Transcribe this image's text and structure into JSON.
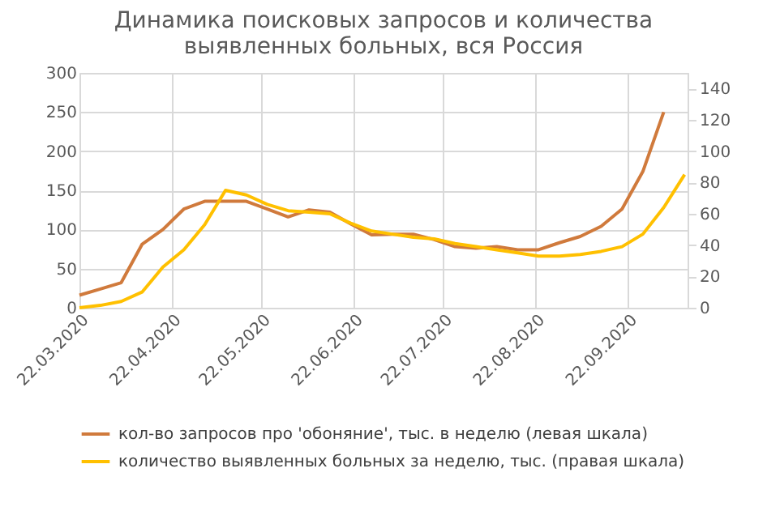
{
  "chart_data": {
    "type": "line",
    "title": [
      "Динамика поисковых запросов и количества",
      "выявленных больных, вся Россия"
    ],
    "x": [
      "2020-03-22",
      "2020-03-29",
      "2020-04-05",
      "2020-04-12",
      "2020-04-19",
      "2020-04-26",
      "2020-05-03",
      "2020-05-10",
      "2020-05-17",
      "2020-05-24",
      "2020-05-31",
      "2020-06-07",
      "2020-06-14",
      "2020-06-21",
      "2020-06-28",
      "2020-07-05",
      "2020-07-12",
      "2020-07-19",
      "2020-07-26",
      "2020-08-02",
      "2020-08-09",
      "2020-08-16",
      "2020-08-23",
      "2020-08-30",
      "2020-09-06",
      "2020-09-13",
      "2020-09-20",
      "2020-09-27",
      "2020-10-04",
      "2020-10-11"
    ],
    "series": [
      {
        "name": "кол-во запросов про 'обоняние', тыс. в неделю (левая шкала)",
        "color": "#d07a3c",
        "axis": "y",
        "values": [
          16,
          24,
          32,
          81,
          100,
          126,
          136,
          136,
          136,
          126,
          116,
          125,
          122,
          107,
          93,
          94,
          94,
          87,
          78,
          76,
          78,
          74,
          74,
          83,
          91,
          104,
          126,
          174,
          250,
          null
        ]
      },
      {
        "name": "количество выявленных больных за неделю, тыс. (правая шкала)",
        "color": "#ffc000",
        "axis": "y2",
        "values": [
          0,
          1.5,
          4,
          10,
          26,
          37,
          53,
          75,
          72,
          66,
          62,
          61,
          60,
          54,
          49,
          47,
          45,
          44,
          41,
          39,
          37,
          35,
          33,
          33,
          34,
          36,
          39,
          47,
          64,
          85
        ]
      }
    ],
    "xlim": [
      "2020-03-22",
      "2020-10-12"
    ],
    "xticks": [
      {
        "value": "2020-03-22",
        "label": "22.03.2020"
      },
      {
        "value": "2020-04-22",
        "label": "22.04.2020"
      },
      {
        "value": "2020-05-22",
        "label": "22.05.2020"
      },
      {
        "value": "2020-06-22",
        "label": "22.06.2020"
      },
      {
        "value": "2020-07-22",
        "label": "22.07.2020"
      },
      {
        "value": "2020-08-22",
        "label": "22.08.2020"
      },
      {
        "value": "2020-09-22",
        "label": "22.09.2020"
      }
    ],
    "ylim": [
      0,
      300
    ],
    "yticks": [
      0,
      50,
      100,
      150,
      200,
      250,
      300
    ],
    "y2lim": [
      0,
      150
    ],
    "y2ticks": [
      0,
      20,
      40,
      60,
      80,
      100,
      120,
      140
    ],
    "grid": true,
    "legend": "bottom",
    "line_style": "solid",
    "marker": "none"
  }
}
